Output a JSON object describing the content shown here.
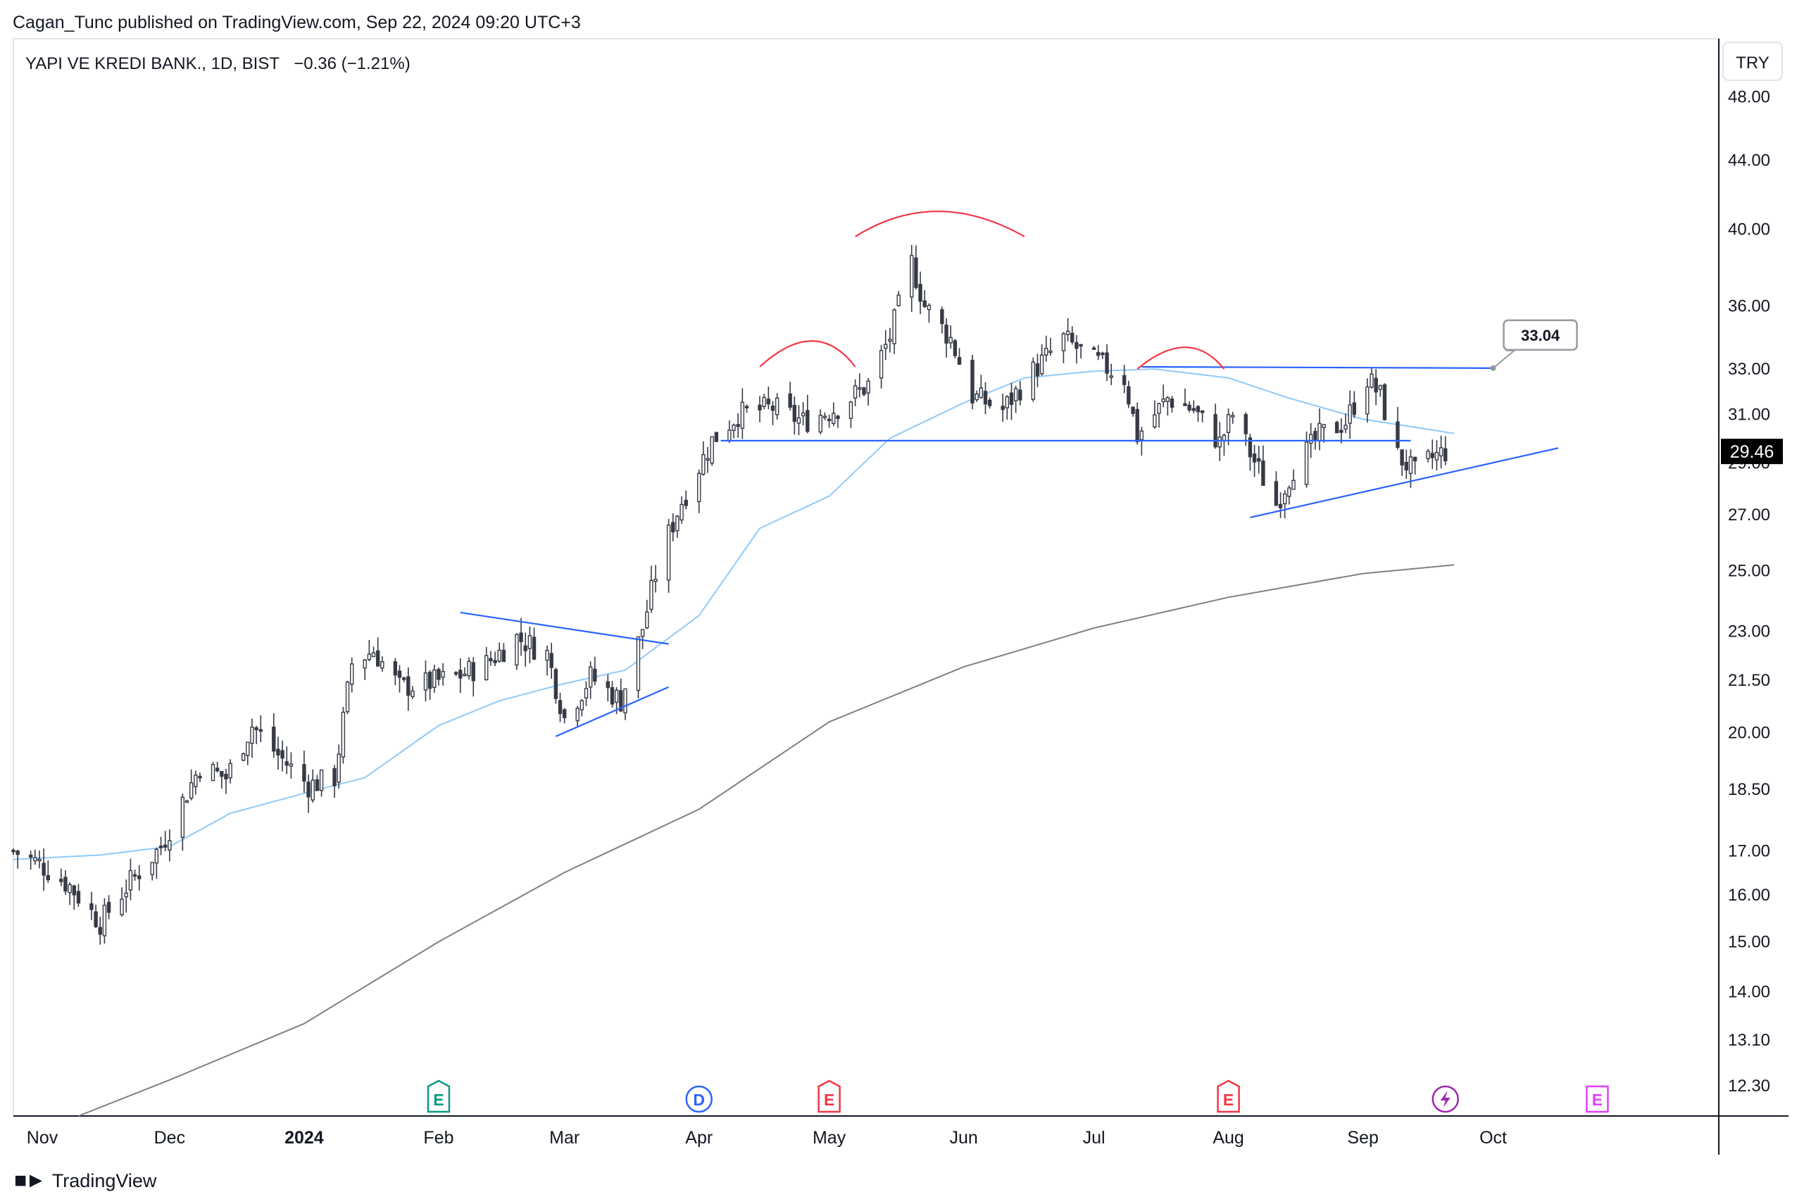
{
  "header": {
    "publisher_line": "Cagan_Tunc published on TradingView.com, Sep 22, 2024 09:20 UTC+3",
    "symbol_line": "YAPI VE KREDI BANK., 1D, BIST",
    "change_line": "−0.36 (−1.21%)"
  },
  "footer": {
    "brand": "TradingView",
    "brand_icon": "tradingview-logo-icon"
  },
  "colors": {
    "up_candle": "#ffffff",
    "down_candle": "#363a45",
    "ma50": "#90caf9",
    "ma200": "#808080",
    "trend_lines": "#2962ff",
    "arcs": "#f23645",
    "price_label_bg": "#000000"
  },
  "chart_data": {
    "type": "candlestick",
    "x_range": [
      "2023-10-26",
      "2024-11-22"
    ],
    "y_scale": "log",
    "y_range": [
      11.8,
      52
    ],
    "currency": "TRY",
    "last_price_label": "29.46",
    "y_ticks": [
      "48.00",
      "44.00",
      "40.00",
      "36.00",
      "33.00",
      "31.00",
      "29.00",
      "27.00",
      "25.00",
      "23.00",
      "21.50",
      "20.00",
      "18.50",
      "17.00",
      "16.00",
      "15.00",
      "14.00",
      "13.10",
      "12.30"
    ],
    "x_ticks": [
      {
        "label": "Nov",
        "date": "2023-11-01",
        "bold": false
      },
      {
        "label": "Dec",
        "date": "2023-12-01",
        "bold": false
      },
      {
        "label": "2024",
        "date": "2024-01-01",
        "bold": true
      },
      {
        "label": "Feb",
        "date": "2024-02-01",
        "bold": false
      },
      {
        "label": "Mar",
        "date": "2024-03-01",
        "bold": false
      },
      {
        "label": "Apr",
        "date": "2024-04-01",
        "bold": false
      },
      {
        "label": "May",
        "date": "2024-05-01",
        "bold": false
      },
      {
        "label": "Jun",
        "date": "2024-06-01",
        "bold": false
      },
      {
        "label": "Jul",
        "date": "2024-07-01",
        "bold": false
      },
      {
        "label": "Aug",
        "date": "2024-08-01",
        "bold": false
      },
      {
        "label": "Sep",
        "date": "2024-09-01",
        "bold": false
      },
      {
        "label": "Oct",
        "date": "2024-10-01",
        "bold": false
      }
    ],
    "price_path": [
      [
        "2023-10-26",
        17.0
      ],
      [
        "2023-11-01",
        16.7
      ],
      [
        "2023-11-08",
        16.2
      ],
      [
        "2023-11-15",
        15.4
      ],
      [
        "2023-11-22",
        16.3
      ],
      [
        "2023-11-29",
        17.1
      ],
      [
        "2023-12-04",
        18.2
      ],
      [
        "2023-12-08",
        19.1
      ],
      [
        "2023-12-14",
        18.8
      ],
      [
        "2023-12-20",
        20.2
      ],
      [
        "2023-12-26",
        19.4
      ],
      [
        "2024-01-02",
        18.6
      ],
      [
        "2024-01-08",
        18.8
      ],
      [
        "2024-01-12",
        22.0
      ],
      [
        "2024-01-17",
        22.4
      ],
      [
        "2024-01-23",
        21.3
      ],
      [
        "2024-01-29",
        21.4
      ],
      [
        "2024-02-05",
        21.6
      ],
      [
        "2024-02-12",
        22.0
      ],
      [
        "2024-02-19",
        22.8
      ],
      [
        "2024-02-26",
        22.3
      ],
      [
        "2024-03-01",
        20.4
      ],
      [
        "2024-03-07",
        21.6
      ],
      [
        "2024-03-14",
        20.9
      ],
      [
        "2024-03-19",
        23.1
      ],
      [
        "2024-03-23",
        25.5
      ],
      [
        "2024-03-28",
        27.5
      ],
      [
        "2024-04-04",
        29.9
      ],
      [
        "2024-04-10",
        31.0
      ],
      [
        "2024-04-18",
        31.3
      ],
      [
        "2024-04-25",
        30.7
      ],
      [
        "2024-05-03",
        31.3
      ],
      [
        "2024-05-10",
        32.3
      ],
      [
        "2024-05-15",
        34.5
      ],
      [
        "2024-05-20",
        38.2
      ],
      [
        "2024-05-23",
        36.0
      ],
      [
        "2024-05-29",
        34.4
      ],
      [
        "2024-06-03",
        31.8
      ],
      [
        "2024-06-10",
        31.2
      ],
      [
        "2024-06-17",
        32.9
      ],
      [
        "2024-06-24",
        34.4
      ],
      [
        "2024-07-01",
        33.4
      ],
      [
        "2024-07-08",
        32.6
      ],
      [
        "2024-07-11",
        30.1
      ],
      [
        "2024-07-18",
        31.7
      ],
      [
        "2024-07-24",
        31.2
      ],
      [
        "2024-07-30",
        29.8
      ],
      [
        "2024-08-02",
        31.0
      ],
      [
        "2024-08-06",
        29.4
      ],
      [
        "2024-08-12",
        27.4
      ],
      [
        "2024-08-16",
        28.8
      ],
      [
        "2024-08-22",
        30.1
      ],
      [
        "2024-08-28",
        30.7
      ],
      [
        "2024-09-02",
        32.6
      ],
      [
        "2024-09-05",
        31.8
      ],
      [
        "2024-09-09",
        29.3
      ],
      [
        "2024-09-13",
        28.6
      ],
      [
        "2024-09-17",
        29.2
      ],
      [
        "2024-09-20",
        29.46
      ]
    ],
    "series": [
      {
        "name": "",
        "kind": "ma-fast",
        "points": [
          [
            "2023-10-26",
            16.8
          ],
          [
            "2023-11-15",
            16.9
          ],
          [
            "2023-12-01",
            17.1
          ],
          [
            "2023-12-15",
            17.9
          ],
          [
            "2024-01-01",
            18.4
          ],
          [
            "2024-01-15",
            18.8
          ],
          [
            "2024-02-01",
            20.2
          ],
          [
            "2024-02-15",
            20.9
          ],
          [
            "2024-03-01",
            21.4
          ],
          [
            "2024-03-15",
            21.8
          ],
          [
            "2024-04-01",
            23.5
          ],
          [
            "2024-04-15",
            26.5
          ],
          [
            "2024-05-01",
            27.7
          ],
          [
            "2024-05-15",
            30.0
          ],
          [
            "2024-06-01",
            31.5
          ],
          [
            "2024-06-15",
            32.6
          ],
          [
            "2024-07-01",
            32.9
          ],
          [
            "2024-07-15",
            33.0
          ],
          [
            "2024-08-01",
            32.6
          ],
          [
            "2024-08-15",
            31.7
          ],
          [
            "2024-09-01",
            30.8
          ],
          [
            "2024-09-22",
            30.2
          ]
        ]
      },
      {
        "name": "",
        "kind": "ma-slow",
        "points": [
          [
            "2023-11-10",
            11.8
          ],
          [
            "2023-12-01",
            12.4
          ],
          [
            "2024-01-01",
            13.4
          ],
          [
            "2024-02-01",
            15.0
          ],
          [
            "2024-03-01",
            16.5
          ],
          [
            "2024-04-01",
            18.0
          ],
          [
            "2024-05-01",
            20.3
          ],
          [
            "2024-06-01",
            21.9
          ],
          [
            "2024-07-01",
            23.1
          ],
          [
            "2024-08-01",
            24.1
          ],
          [
            "2024-09-01",
            24.9
          ],
          [
            "2024-09-22",
            25.2
          ]
        ]
      }
    ],
    "annotations": {
      "trend_lines": [
        {
          "from": [
            "2024-02-06",
            23.6
          ],
          "to": [
            "2024-03-25",
            22.6
          ]
        },
        {
          "from": [
            "2024-02-28",
            19.9
          ],
          "to": [
            "2024-03-25",
            21.3
          ]
        },
        {
          "from": [
            "2024-04-06",
            29.9
          ],
          "to": [
            "2024-09-12",
            29.9
          ]
        },
        {
          "from": [
            "2024-07-12",
            33.1
          ],
          "to": [
            "2024-10-01",
            33.04
          ]
        },
        {
          "from": [
            "2024-08-06",
            26.9
          ],
          "to": [
            "2024-10-16",
            29.6
          ]
        }
      ],
      "arcs": [
        {
          "from": [
            "2024-04-15",
            33.1
          ],
          "peak": [
            "2024-04-27",
            34.3
          ],
          "to": [
            "2024-05-07",
            33.1
          ]
        },
        {
          "from": [
            "2024-05-07",
            39.6
          ],
          "peak": [
            "2024-05-26",
            41.0
          ],
          "to": [
            "2024-06-15",
            39.6
          ]
        },
        {
          "from": [
            "2024-07-11",
            33.0
          ],
          "peak": [
            "2024-07-22",
            34.0
          ],
          "to": [
            "2024-07-31",
            33.0
          ]
        }
      ],
      "callout": {
        "label": "33.04",
        "date": "2024-10-01",
        "price": 33.04
      }
    },
    "events": [
      {
        "date": "2024-02-01",
        "kind": "earnings",
        "label": "E",
        "color": "#089981",
        "icon": "earnings-icon"
      },
      {
        "date": "2024-04-01",
        "kind": "dividend",
        "label": "D",
        "color": "#2962ff",
        "icon": "dividend-icon"
      },
      {
        "date": "2024-05-01",
        "kind": "earnings",
        "label": "E",
        "color": "#f23645",
        "icon": "earnings-icon"
      },
      {
        "date": "2024-08-01",
        "kind": "earnings",
        "label": "E",
        "color": "#f23645",
        "icon": "earnings-icon"
      },
      {
        "date": "2024-09-20",
        "kind": "split",
        "label": "",
        "color": "#9c27b0",
        "icon": "lightning-icon"
      },
      {
        "date": "2024-10-25",
        "kind": "earnings",
        "label": "E",
        "color": "#e040fb",
        "icon": "earnings-icon"
      }
    ]
  }
}
